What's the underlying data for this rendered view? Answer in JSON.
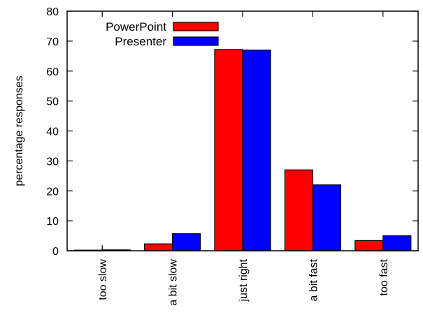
{
  "chart_data": {
    "type": "bar",
    "title": "",
    "xlabel": "",
    "ylabel": "percentage responses",
    "ylim": [
      0,
      80
    ],
    "yticks": [
      0,
      10,
      20,
      30,
      40,
      50,
      60,
      70,
      80
    ],
    "grid": false,
    "legend_position": "top-left",
    "categories": [
      "too slow",
      "a bit slow",
      "just right",
      "a bit fast",
      "too fast"
    ],
    "series": [
      {
        "name": "PowerPoint",
        "color": "#ff0000",
        "values": [
          0.2,
          2.3,
          67.2,
          27.0,
          3.4
        ]
      },
      {
        "name": "Presenter",
        "color": "#0000ff",
        "values": [
          0.3,
          5.7,
          67.0,
          22.0,
          5.0
        ]
      }
    ]
  }
}
